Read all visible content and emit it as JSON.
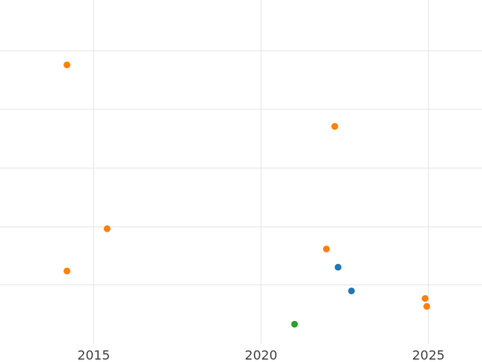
{
  "chart_data": {
    "type": "scatter",
    "title": "",
    "xlabel": "",
    "ylabel": "",
    "xlim": [
      2012.2,
      2026.6
    ],
    "ylim": [
      0,
      1
    ],
    "x_ticks": [
      2015,
      2020,
      2025
    ],
    "x_tick_labels": [
      "2015",
      "2020",
      "2025"
    ],
    "y_grid_count": 5,
    "grid": true,
    "legend": "none",
    "series": [
      {
        "color": "#1f77b4",
        "points": [
          {
            "x": 2022.3,
            "y": 0.222
          },
          {
            "x": 2022.7,
            "y": 0.153
          }
        ]
      },
      {
        "color": "#ff7f0e",
        "points": [
          {
            "x": 2014.2,
            "y": 0.811
          },
          {
            "x": 2022.2,
            "y": 0.632
          },
          {
            "x": 2015.4,
            "y": 0.334
          },
          {
            "x": 2021.95,
            "y": 0.275
          },
          {
            "x": 2014.2,
            "y": 0.211
          },
          {
            "x": 2024.9,
            "y": 0.131
          },
          {
            "x": 2024.95,
            "y": 0.108
          }
        ]
      },
      {
        "color": "#2ca02c",
        "points": [
          {
            "x": 2021.0,
            "y": 0.056
          }
        ]
      }
    ]
  }
}
